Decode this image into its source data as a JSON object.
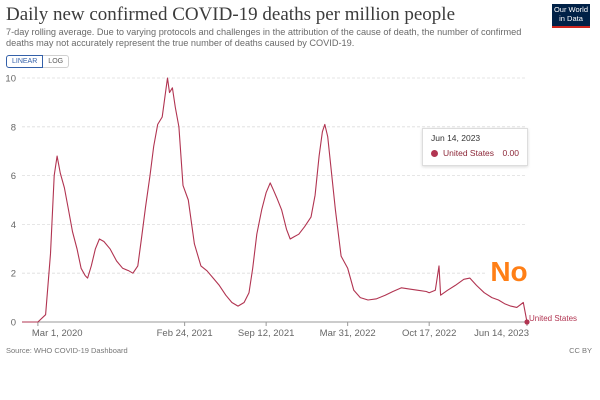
{
  "header": {
    "title": "Daily new confirmed COVID-19 deaths per million people",
    "subtitle": "7-day rolling average. Due to varying protocols and challenges in the attribution of the cause of death, the number of confirmed deaths may not accurately represent the true number of deaths caused by COVID-19.",
    "logo_text": "Our World in Data"
  },
  "scale_toggle": {
    "linear_label": "LINEAR",
    "log_label": "LOG",
    "selected": "LINEAR"
  },
  "tooltip": {
    "date": "Jun 14, 2023",
    "series": "United States",
    "value": "0.00"
  },
  "annotation": {
    "text": "No",
    "color": "#ff7f16"
  },
  "footer": {
    "source": "Source: WHO COVID-19 Dashboard",
    "license": "CC BY"
  },
  "colors": {
    "series": "#b13451",
    "grid": "#dddddd"
  },
  "chart_data": {
    "type": "line",
    "title": "Daily new confirmed COVID-19 deaths per million people",
    "x_axis_type": "date",
    "x_tick_labels": [
      "Mar 1, 2020",
      "Feb 24, 2021",
      "Sep 12, 2021",
      "Mar 31, 2022",
      "Oct 17, 2022",
      "Jun 14, 2023"
    ],
    "y_ticks": [
      0,
      2,
      4,
      6,
      8,
      10
    ],
    "ylim": [
      0,
      10
    ],
    "grid": "horizontal dashed",
    "series": [
      {
        "name": "United States",
        "points": [
          [
            "2020-01-22",
            0
          ],
          [
            "2020-03-01",
            0
          ],
          [
            "2020-03-20",
            0.3
          ],
          [
            "2020-04-01",
            2.8
          ],
          [
            "2020-04-10",
            6.0
          ],
          [
            "2020-04-17",
            6.8
          ],
          [
            "2020-04-25",
            6.1
          ],
          [
            "2020-05-05",
            5.5
          ],
          [
            "2020-05-15",
            4.6
          ],
          [
            "2020-05-25",
            3.7
          ],
          [
            "2020-06-05",
            3.0
          ],
          [
            "2020-06-15",
            2.2
          ],
          [
            "2020-06-25",
            1.9
          ],
          [
            "2020-07-01",
            1.8
          ],
          [
            "2020-07-10",
            2.3
          ],
          [
            "2020-07-20",
            3.0
          ],
          [
            "2020-07-30",
            3.4
          ],
          [
            "2020-08-10",
            3.3
          ],
          [
            "2020-08-25",
            3.0
          ],
          [
            "2020-09-10",
            2.5
          ],
          [
            "2020-09-25",
            2.2
          ],
          [
            "2020-10-10",
            2.1
          ],
          [
            "2020-10-20",
            2.0
          ],
          [
            "2020-11-01",
            2.3
          ],
          [
            "2020-11-10",
            3.4
          ],
          [
            "2020-11-20",
            4.7
          ],
          [
            "2020-12-01",
            6.0
          ],
          [
            "2020-12-10",
            7.2
          ],
          [
            "2020-12-20",
            8.1
          ],
          [
            "2020-12-31",
            8.4
          ],
          [
            "2021-01-08",
            9.4
          ],
          [
            "2021-01-13",
            10.0
          ],
          [
            "2021-01-18",
            9.4
          ],
          [
            "2021-01-25",
            9.6
          ],
          [
            "2021-02-01",
            8.8
          ],
          [
            "2021-02-10",
            8.0
          ],
          [
            "2021-02-20",
            5.6
          ],
          [
            "2021-03-05",
            5.0
          ],
          [
            "2021-03-20",
            3.2
          ],
          [
            "2021-04-05",
            2.3
          ],
          [
            "2021-04-20",
            2.1
          ],
          [
            "2021-05-05",
            1.8
          ],
          [
            "2021-05-20",
            1.5
          ],
          [
            "2021-06-05",
            1.1
          ],
          [
            "2021-06-20",
            0.8
          ],
          [
            "2021-07-05",
            0.65
          ],
          [
            "2021-07-20",
            0.8
          ],
          [
            "2021-08-01",
            1.2
          ],
          [
            "2021-08-10",
            2.2
          ],
          [
            "2021-08-20",
            3.6
          ],
          [
            "2021-09-01",
            4.6
          ],
          [
            "2021-09-12",
            5.3
          ],
          [
            "2021-09-22",
            5.7
          ],
          [
            "2021-09-30",
            5.4
          ],
          [
            "2021-10-08",
            5.1
          ],
          [
            "2021-10-20",
            4.6
          ],
          [
            "2021-11-01",
            3.8
          ],
          [
            "2021-11-10",
            3.4
          ],
          [
            "2021-11-20",
            3.5
          ],
          [
            "2021-12-01",
            3.6
          ],
          [
            "2021-12-15",
            3.9
          ],
          [
            "2021-12-31",
            4.3
          ],
          [
            "2022-01-10",
            5.2
          ],
          [
            "2022-01-20",
            6.8
          ],
          [
            "2022-01-28",
            7.8
          ],
          [
            "2022-02-03",
            8.1
          ],
          [
            "2022-02-10",
            7.6
          ],
          [
            "2022-02-20",
            6.0
          ],
          [
            "2022-03-01",
            4.6
          ],
          [
            "2022-03-15",
            2.7
          ],
          [
            "2022-03-31",
            2.2
          ],
          [
            "2022-04-15",
            1.3
          ],
          [
            "2022-05-01",
            1.0
          ],
          [
            "2022-05-20",
            0.9
          ],
          [
            "2022-06-10",
            0.95
          ],
          [
            "2022-07-01",
            1.1
          ],
          [
            "2022-07-20",
            1.25
          ],
          [
            "2022-08-10",
            1.4
          ],
          [
            "2022-08-30",
            1.35
          ],
          [
            "2022-09-20",
            1.3
          ],
          [
            "2022-10-10",
            1.25
          ],
          [
            "2022-10-17",
            1.2
          ],
          [
            "2022-11-01",
            1.3
          ],
          [
            "2022-11-10",
            2.3
          ],
          [
            "2022-11-14",
            1.1
          ],
          [
            "2022-12-01",
            1.3
          ],
          [
            "2022-12-20",
            1.5
          ],
          [
            "2023-01-10",
            1.75
          ],
          [
            "2023-01-25",
            1.8
          ],
          [
            "2023-02-10",
            1.5
          ],
          [
            "2023-03-01",
            1.2
          ],
          [
            "2023-03-20",
            1.0
          ],
          [
            "2023-04-05",
            0.9
          ],
          [
            "2023-04-20",
            0.75
          ],
          [
            "2023-05-05",
            0.65
          ],
          [
            "2023-05-20",
            0.6
          ],
          [
            "2023-06-05",
            0.8
          ],
          [
            "2023-06-14",
            0.0
          ]
        ]
      }
    ],
    "end_label": "United States"
  }
}
